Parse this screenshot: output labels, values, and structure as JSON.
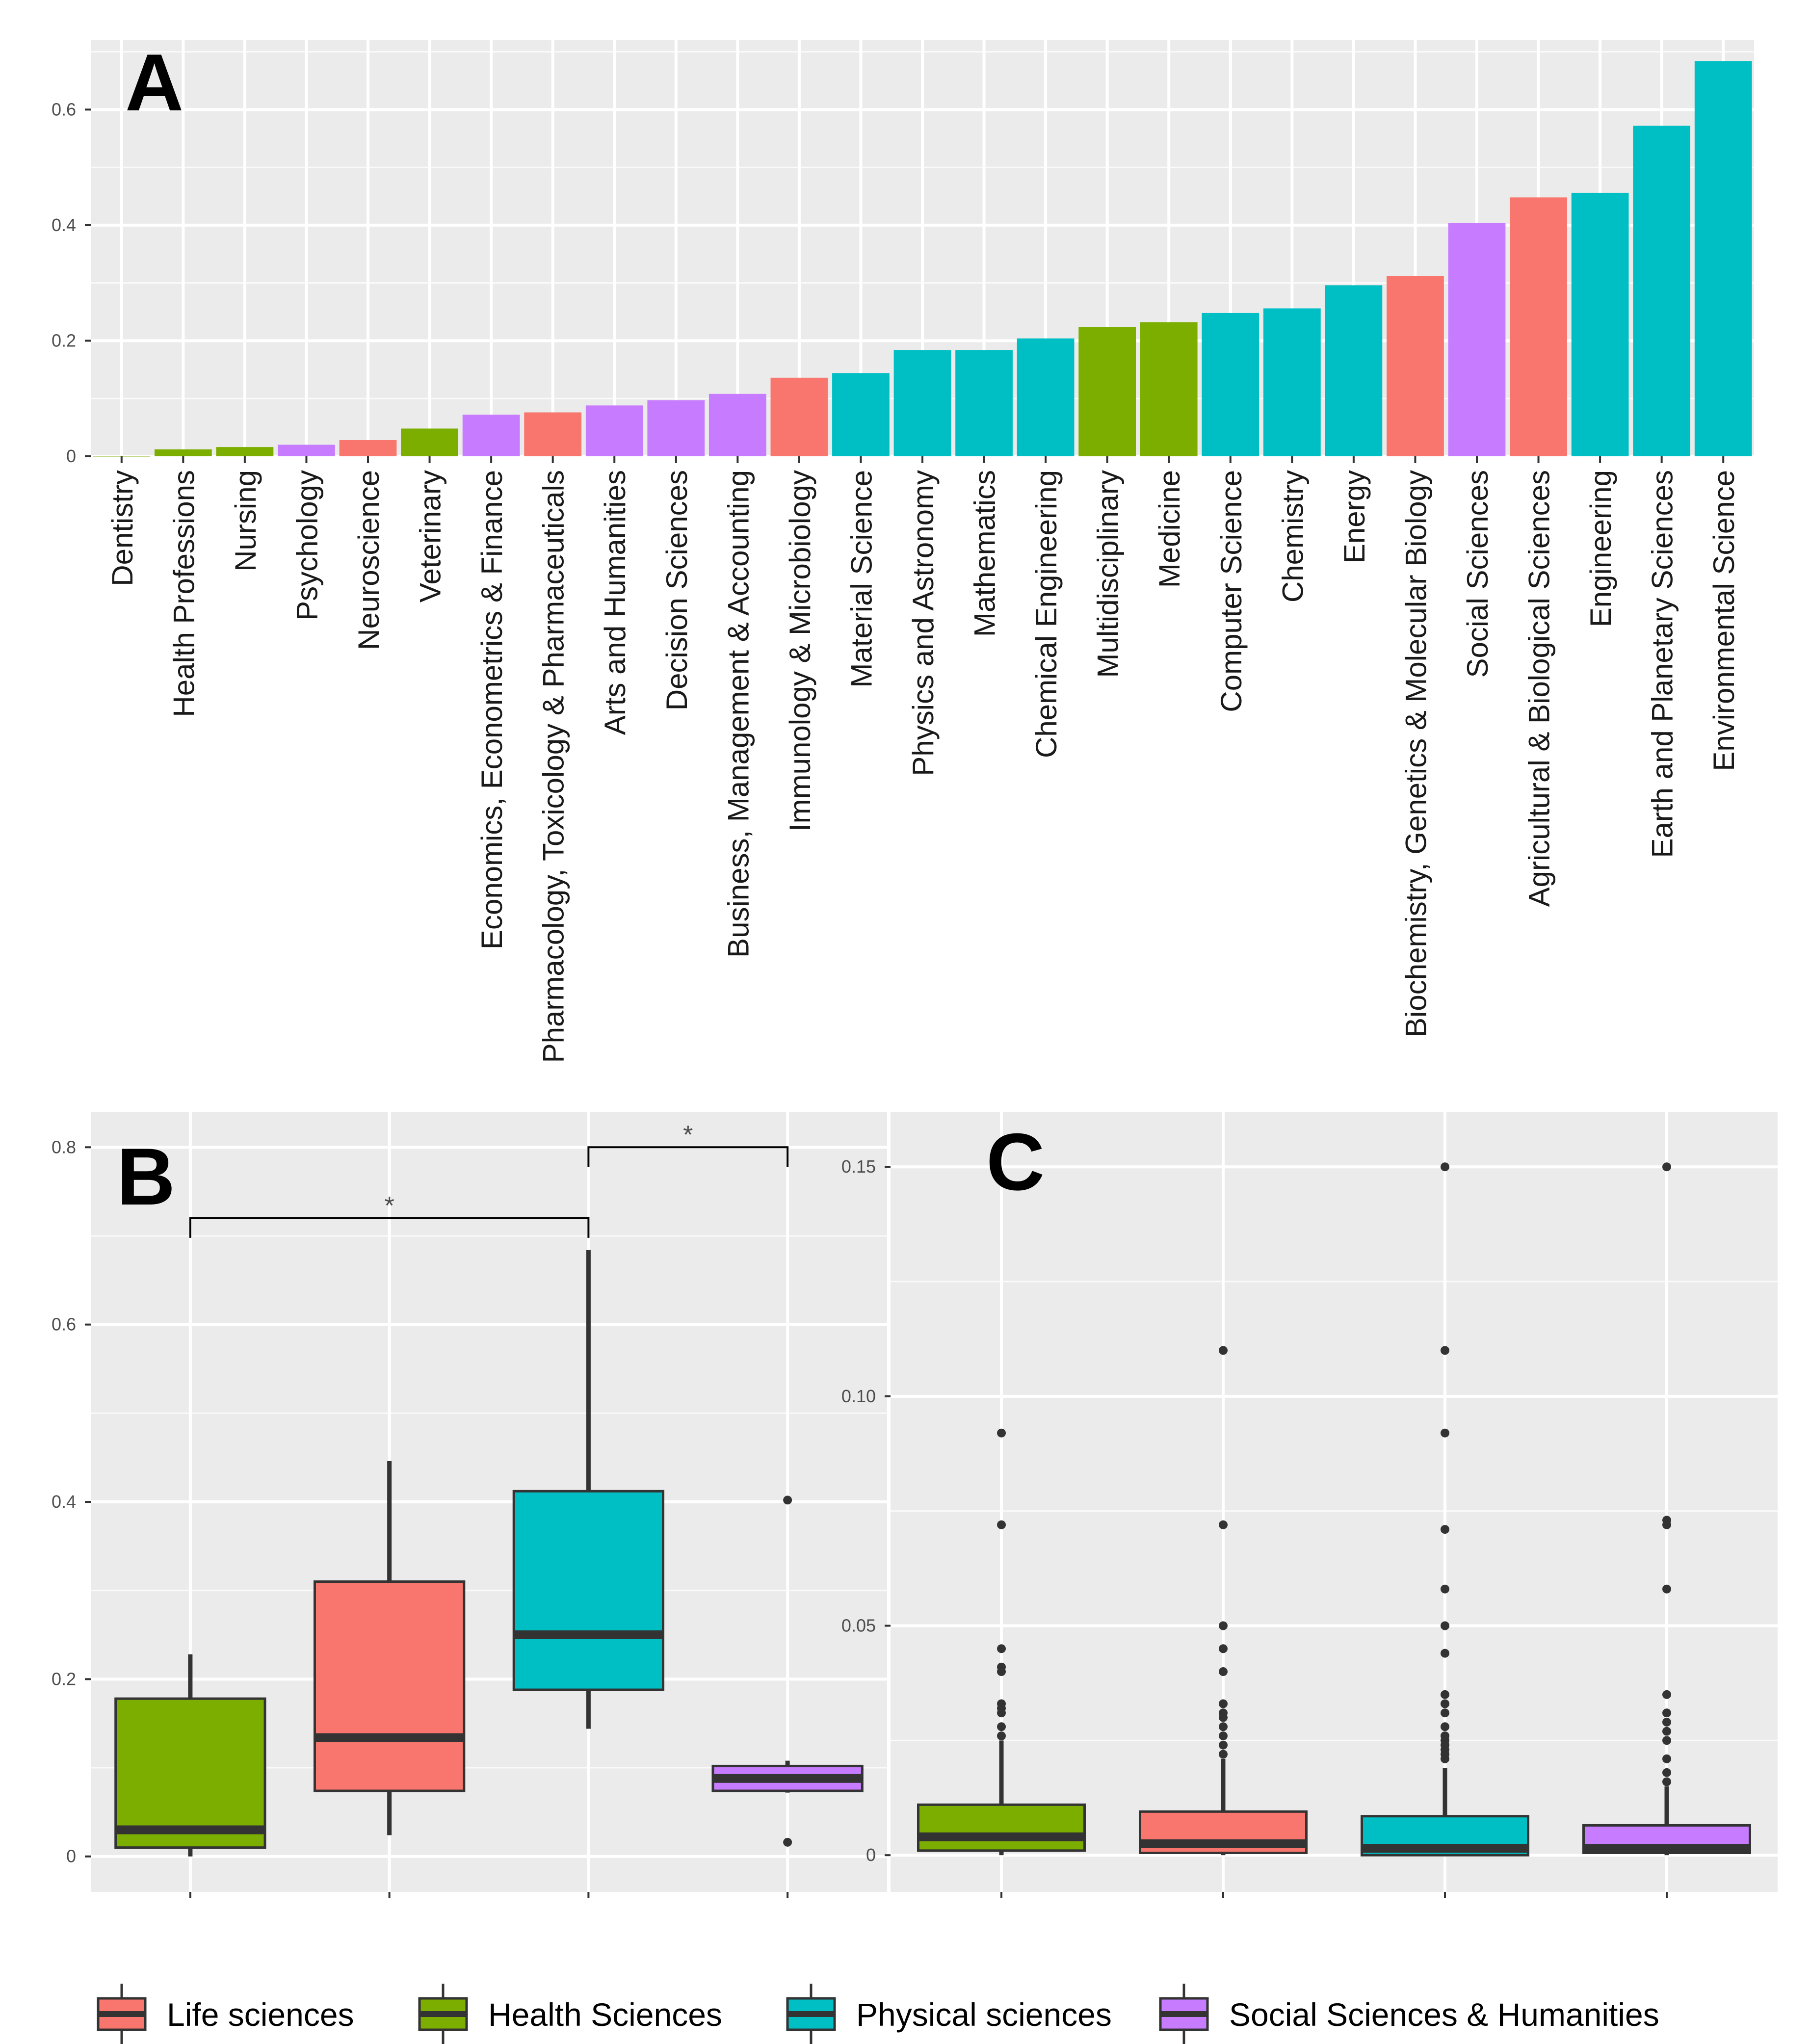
{
  "legend": [
    {
      "label": "Life sciences",
      "color": "#F8766D"
    },
    {
      "label": "Health Sciences",
      "color": "#7CAE00"
    },
    {
      "label": "Physical sciences",
      "color": "#00BFC4"
    },
    {
      "label": "Social Sciences & Humanities",
      "color": "#C77CFF"
    }
  ],
  "chart_data": [
    {
      "panel": "A",
      "type": "bar",
      "ylim": [
        0,
        0.72
      ],
      "yticks": [
        0,
        0.2,
        0.4,
        0.6
      ],
      "yticklabels": [
        "0",
        "0.2",
        "0.4",
        "0.6"
      ],
      "grid": true,
      "categories": [
        "Dentistry",
        "Health Professions",
        "Nursing",
        "Psychology",
        "Neuroscience",
        "Veterinary",
        "Economics, Econometrics & Finance",
        "Pharmacology, Toxicology & Pharmaceuticals",
        "Arts and Humanities",
        "Decision Sciences",
        "Business, Management & Accounting",
        "Immunology & Microbiology",
        "Material Science",
        "Physics and Astronomy",
        "Mathematics",
        "Chemical Engineering",
        "Multidisciplinary",
        "Medicine",
        "Computer Science",
        "Chemistry",
        "Energy",
        "Biochemistry, Genetics & Molecular Biology",
        "Social Sciences",
        "Agricultural & Biological Sciences",
        "Engineering",
        "Earth and Planetary Sciences",
        "Environmental Science"
      ],
      "values": [
        0.0,
        0.012,
        0.016,
        0.02,
        0.028,
        0.048,
        0.072,
        0.076,
        0.088,
        0.097,
        0.108,
        0.136,
        0.144,
        0.184,
        0.184,
        0.204,
        0.224,
        0.232,
        0.248,
        0.256,
        0.296,
        0.312,
        0.404,
        0.448,
        0.456,
        0.572,
        0.684
      ],
      "groups": [
        "Health Sciences",
        "Health Sciences",
        "Health Sciences",
        "Social Sciences & Humanities",
        "Life sciences",
        "Health Sciences",
        "Social Sciences & Humanities",
        "Life sciences",
        "Social Sciences & Humanities",
        "Social Sciences & Humanities",
        "Social Sciences & Humanities",
        "Life sciences",
        "Physical sciences",
        "Physical sciences",
        "Physical sciences",
        "Physical sciences",
        "Health Sciences",
        "Health Sciences",
        "Physical sciences",
        "Physical sciences",
        "Physical sciences",
        "Life sciences",
        "Social Sciences & Humanities",
        "Life sciences",
        "Physical sciences",
        "Physical sciences",
        "Physical sciences"
      ]
    },
    {
      "panel": "B",
      "type": "box",
      "ylim": [
        -0.04,
        0.84
      ],
      "yticks": [
        0,
        0.2,
        0.4,
        0.6,
        0.8
      ],
      "yticklabels": [
        "0",
        "0.2",
        "0.4",
        "0.6",
        "0.8"
      ],
      "grid": true,
      "boxes": [
        {
          "group": "Health Sciences",
          "min": 0.0,
          "q1": 0.01,
          "median": 0.03,
          "q3": 0.178,
          "max": 0.228,
          "outliers": []
        },
        {
          "group": "Life sciences",
          "min": 0.024,
          "q1": 0.074,
          "median": 0.134,
          "q3": 0.31,
          "max": 0.446,
          "outliers": []
        },
        {
          "group": "Physical sciences",
          "min": 0.144,
          "q1": 0.188,
          "median": 0.25,
          "q3": 0.412,
          "max": 0.684,
          "outliers": []
        },
        {
          "group": "Social Sciences & Humanities",
          "min": 0.072,
          "q1": 0.074,
          "median": 0.088,
          "q3": 0.102,
          "max": 0.108,
          "outliers": [
            0.016,
            0.402
          ]
        }
      ],
      "significance": [
        {
          "from": 0,
          "to": 2,
          "label": "*",
          "y": 0.72
        },
        {
          "from": 2,
          "to": 3,
          "label": "*",
          "y": 0.8
        }
      ]
    },
    {
      "panel": "C",
      "type": "box",
      "ylim": [
        -0.008,
        0.162
      ],
      "yticks": [
        0,
        0.05,
        0.1,
        0.15
      ],
      "yticklabels": [
        "0",
        "0.05",
        "0.10",
        "0.15"
      ],
      "grid": true,
      "boxes": [
        {
          "group": "Health Sciences",
          "min": 0.0,
          "q1": 0.001,
          "median": 0.004,
          "q3": 0.011,
          "max": 0.025,
          "outliers": [
            0.026,
            0.028,
            0.031,
            0.032,
            0.033,
            0.04,
            0.041,
            0.045,
            0.072,
            0.092
          ]
        },
        {
          "group": "Life sciences",
          "min": 0.0,
          "q1": 0.0005,
          "median": 0.0025,
          "q3": 0.0095,
          "max": 0.021,
          "outliers": [
            0.022,
            0.024,
            0.026,
            0.028,
            0.03,
            0.031,
            0.033,
            0.04,
            0.045,
            0.05,
            0.072,
            0.11
          ]
        },
        {
          "group": "Physical sciences",
          "min": 0.0,
          "q1": 0.0,
          "median": 0.0015,
          "q3": 0.0085,
          "max": 0.019,
          "outliers": [
            0.021,
            0.022,
            0.023,
            0.024,
            0.025,
            0.026,
            0.028,
            0.031,
            0.033,
            0.035,
            0.044,
            0.05,
            0.058,
            0.071,
            0.092,
            0.11,
            0.15
          ]
        },
        {
          "group": "Social Sciences & Humanities",
          "min": 0.0,
          "q1": 0.0005,
          "median": 0.0015,
          "q3": 0.0065,
          "max": 0.015,
          "outliers": [
            0.016,
            0.018,
            0.021,
            0.025,
            0.027,
            0.029,
            0.031,
            0.035,
            0.058,
            0.072,
            0.073,
            0.15
          ]
        }
      ]
    }
  ]
}
